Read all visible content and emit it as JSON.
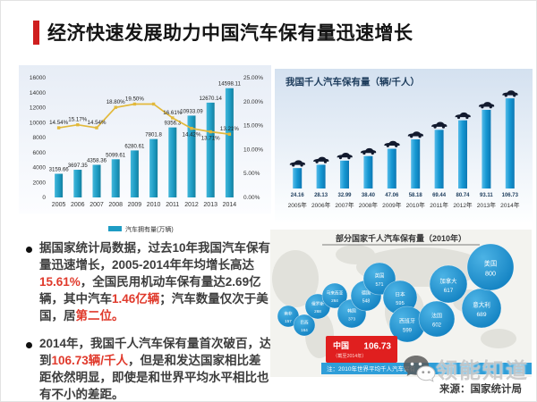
{
  "title": "经济快速发展助力中国汽车保有量迅速增长",
  "source": "来源：国家统计局",
  "watermark": "领能知道",
  "bullets": [
    {
      "segments": [
        {
          "t": "据国家统计局数据，过去10年我国汽车保有量迅速增长，2005-2014年年均增长高达",
          "hl": false
        },
        {
          "t": "15.61%",
          "hl": true
        },
        {
          "t": "，全国民用机动车保有量达2.69亿辆，其中汽车",
          "hl": false
        },
        {
          "t": "1.46亿辆",
          "hl": true
        },
        {
          "t": "；汽车数量仅次于美国，居",
          "hl": false
        },
        {
          "t": "第二位。",
          "hl": true
        }
      ]
    },
    {
      "segments": [
        {
          "t": "2014年，我国千人汽车保有量首次破百，达到",
          "hl": false
        },
        {
          "t": "106.73辆/千人",
          "hl": true
        },
        {
          "t": "，但是和发达国家相比差距依然明显，即使是和世界平均水平相比也有不小的差距。",
          "hl": false
        }
      ]
    }
  ],
  "chart_data": [
    {
      "type": "bar",
      "name": "china-car-ownership-and-growth",
      "categories": [
        "2005",
        "2006",
        "2007",
        "2008",
        "2009",
        "2010",
        "2011",
        "2012",
        "2013",
        "2014"
      ],
      "series": [
        {
          "name": "汽车拥有量(万辆)",
          "type": "bar",
          "values": [
            3159.66,
            3697.35,
            4358.36,
            5099.61,
            6280.61,
            7801.8,
            9356.3,
            10933.09,
            12670.14,
            14598.11
          ],
          "labels": [
            "3159.66",
            "3697.35",
            "4358.36",
            "5099.61",
            "6280.61",
            "7801.8",
            "9356.3",
            "10933.09",
            "12670.14",
            "14598.11"
          ]
        },
        {
          "name": "增长率",
          "type": "line",
          "values": [
            14.54,
            15.17,
            14.54,
            18.8,
            19.5,
            19.5,
            16.61,
            14.42,
            13.71,
            13.21
          ],
          "labels": [
            "14.54%",
            "15.17%",
            "14.54%",
            "18.80%",
            "19.50%",
            "",
            "16.61%",
            "14.42%",
            "13.71%",
            "13.21%"
          ]
        }
      ],
      "ylim_left": [
        0,
        16000
      ],
      "yticks_left": [
        0,
        2000,
        4000,
        6000,
        8000,
        10000,
        12000,
        14000,
        16000
      ],
      "ylim_right": [
        0,
        25
      ],
      "yticks_right": [
        "0.00%",
        "5.00%",
        "10.00%",
        "15.00%",
        "20.00%",
        "25.00%"
      ],
      "legend": [
        "汽车拥有量(万辆)"
      ],
      "legend_position": "bottom",
      "grid": false,
      "colors": {
        "bar": "#1e9cc4",
        "line": "#e2b93b"
      }
    },
    {
      "type": "bar",
      "title": "我国千人汽车保有量（辆/千人）",
      "categories": [
        "2005年",
        "2006年",
        "2007年",
        "2008年",
        "2009年",
        "2010年",
        "2011年",
        "2012年",
        "2013年",
        "2014年"
      ],
      "values": [
        24.16,
        28.13,
        32.99,
        38.4,
        47.06,
        58.18,
        69.44,
        80.74,
        93.11,
        106.73
      ],
      "labels": [
        "24.16",
        "28.13",
        "32.99",
        "38.40",
        "47.06",
        "58.18",
        "69.44",
        "80.74",
        "93.11",
        "106.73"
      ],
      "ylim": [
        0,
        110
      ],
      "grid": false,
      "colors": {
        "bar": "#1597d2"
      }
    },
    {
      "type": "scatter",
      "title": "部分国家千人汽车保有量（2010年）",
      "points": [
        {
          "country": "南非",
          "value": 157,
          "pos": [
            20,
            97
          ],
          "r": 12
        },
        {
          "country": "巴西",
          "value": 164,
          "pos": [
            38,
            107
          ],
          "r": 12
        },
        {
          "country": "俄罗斯",
          "value": 268,
          "pos": [
            53,
            86
          ],
          "r": 14
        },
        {
          "country": "马来西亚",
          "value": 264,
          "pos": [
            72,
            74
          ],
          "r": 14
        },
        {
          "country": "韩国",
          "value": 373,
          "pos": [
            91,
            94
          ],
          "r": 16
        },
        {
          "country": "德国",
          "value": 548,
          "pos": [
            107,
            74
          ],
          "r": 17
        },
        {
          "country": "英国",
          "value": 571,
          "pos": [
            122,
            55
          ],
          "r": 18
        },
        {
          "country": "日本",
          "value": 595,
          "pos": [
            145,
            76
          ],
          "r": 19
        },
        {
          "country": "西班牙",
          "value": 599,
          "pos": [
            153,
            106
          ],
          "r": 20
        },
        {
          "country": "法国",
          "value": 602,
          "pos": [
            186,
            100
          ],
          "r": 20
        },
        {
          "country": "加拿大",
          "value": 617,
          "pos": [
            199,
            61
          ],
          "r": 21
        },
        {
          "country": "意大利",
          "value": 689,
          "pos": [
            236,
            88
          ],
          "r": 22
        },
        {
          "country": "美国",
          "value": 800,
          "pos": [
            246,
            42
          ],
          "r": 26
        }
      ],
      "highlight": {
        "country": "中国",
        "value": "106.73",
        "note": "（截至2014年）"
      },
      "footnote": "注：2010年世界平均千人汽车保有",
      "colors": {
        "bubble": "#1a96d5",
        "highlight": "#e01f1f",
        "footnote_bar": "#2f9ed8"
      }
    }
  ]
}
